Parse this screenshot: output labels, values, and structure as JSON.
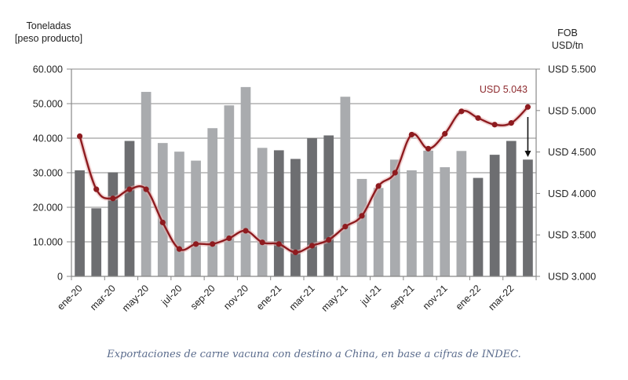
{
  "chart_data": {
    "type": "bar+line",
    "left_axis_title": [
      "Toneladas",
      "[peso producto]"
    ],
    "right_axis_title": [
      "FOB",
      "USD/tn"
    ],
    "left_ticks": [
      "60.000",
      "50.000",
      "40.000",
      "30.000",
      "20.000",
      "10.000",
      "0"
    ],
    "left_tick_values": [
      60000,
      50000,
      40000,
      30000,
      20000,
      10000,
      0
    ],
    "right_ticks": [
      "USD 5.500",
      "USD 5.000",
      "USD 4.500",
      "USD 4.000",
      "USD 3.500",
      "USD 3.000"
    ],
    "right_tick_values": [
      5500,
      5000,
      4500,
      4000,
      3500,
      3000
    ],
    "ylim_left": [
      0,
      60000
    ],
    "ylim_right": [
      3000,
      5500
    ],
    "grid": true,
    "x_tick_labels": [
      "ene-20",
      "mar-20",
      "may-20",
      "jul-20",
      "sep-20",
      "nov-20",
      "ene-21",
      "mar-21",
      "may-21",
      "jul-21",
      "sep-21",
      "nov-21",
      "ene-22",
      "mar-22"
    ],
    "categories": [
      "ene-20",
      "feb-20",
      "mar-20",
      "abr-20",
      "may-20",
      "jun-20",
      "jul-20",
      "ago-20",
      "sep-20",
      "oct-20",
      "nov-20",
      "dic-20",
      "ene-21",
      "feb-21",
      "mar-21",
      "abr-21",
      "may-21",
      "jun-21",
      "jul-21",
      "ago-21",
      "sep-21",
      "oct-21",
      "nov-21",
      "dic-21",
      "ene-22",
      "feb-22",
      "mar-22",
      "abr-22"
    ],
    "series": [
      {
        "name": "Toneladas",
        "type": "bar",
        "axis": "left",
        "values": [
          30700,
          19700,
          30100,
          39200,
          53400,
          38600,
          36100,
          33500,
          42900,
          49500,
          54800,
          37200,
          36500,
          34000,
          40000,
          40800,
          52000,
          28200,
          25600,
          33800,
          30700,
          36400,
          31600,
          36300,
          28500,
          35200,
          39200,
          33800
        ],
        "highlight": [
          true,
          true,
          true,
          true,
          false,
          false,
          false,
          false,
          false,
          false,
          false,
          false,
          true,
          true,
          true,
          true,
          false,
          false,
          false,
          false,
          false,
          false,
          false,
          false,
          true,
          true,
          true,
          true
        ]
      },
      {
        "name": "FOB USD/tn",
        "type": "line",
        "axis": "right",
        "values": [
          4690,
          4050,
          3940,
          4050,
          4050,
          3650,
          3330,
          3390,
          3390,
          3460,
          3550,
          3410,
          3390,
          3290,
          3370,
          3440,
          3600,
          3730,
          4090,
          4250,
          4710,
          4540,
          4720,
          4990,
          4910,
          4830,
          4850,
          5043
        ]
      }
    ],
    "annotation": "USD 5.043",
    "colors": {
      "bar_dark": "#6d6e71",
      "bar_light": "#a9abae",
      "line": "#8e1b1f",
      "annotation": "#8e2b2f",
      "grid": "#a0a0a0"
    }
  },
  "caption": "Exportaciones de carne vacuna con destino a China, en base a cifras de INDEC."
}
